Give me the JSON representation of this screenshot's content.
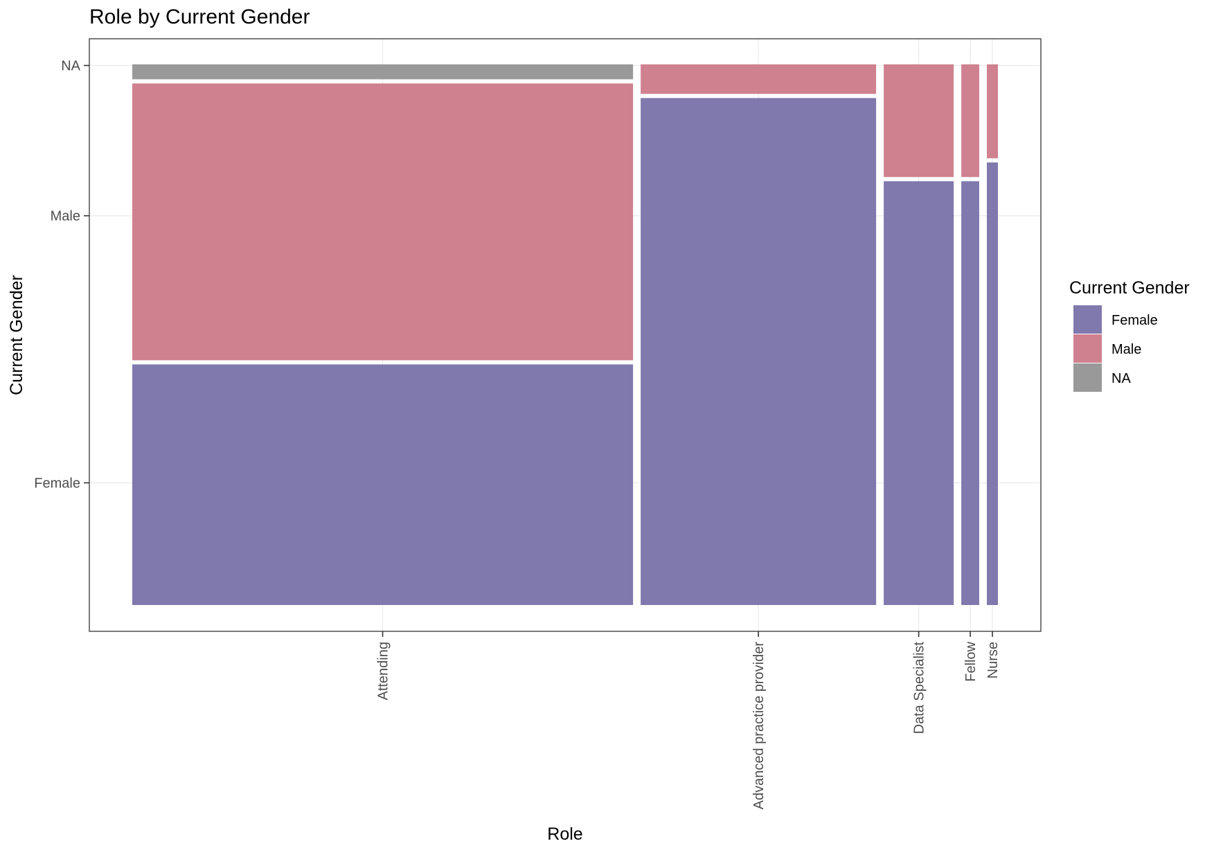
{
  "chart_data": {
    "type": "mosaic",
    "title": "Role by Current Gender",
    "xlabel": "Role",
    "ylabel": "Current Gender",
    "categories": [
      "Attending",
      "Advanced practice provider",
      "Data Specialist",
      "Fellow",
      "Nurse"
    ],
    "category_widths": [
      0.587,
      0.276,
      0.082,
      0.021,
      0.013
    ],
    "y_tick_labels": [
      "Female",
      "Male",
      "NA"
    ],
    "y_tick_values": [
      0.226,
      0.72,
      0.998
    ],
    "series": [
      {
        "name": "Female",
        "color": "#8079ae",
        "values": [
          0.452,
          0.945,
          0.79,
          0.79,
          0.825
        ]
      },
      {
        "name": "Male",
        "color": "#cf818f",
        "values": [
          0.52,
          0.055,
          0.21,
          0.21,
          0.175
        ]
      },
      {
        "name": "NA",
        "color": "#999999",
        "values": [
          0.028,
          0,
          0,
          0,
          0
        ]
      }
    ],
    "ylim": [
      0,
      1
    ],
    "grid": true,
    "legend": {
      "title": "Current Gender",
      "position": "right"
    }
  }
}
